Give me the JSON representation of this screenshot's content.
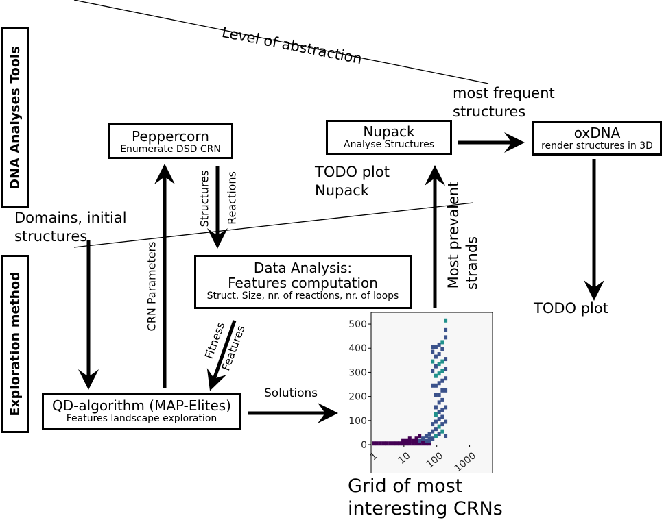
{
  "side_panels": {
    "tools": "DNA Analyses Tools",
    "method": "Exploration method"
  },
  "abstraction_label": "Level of abstraction",
  "boxes": {
    "peppercorn": {
      "title": "Peppercorn",
      "subtitle": "Enumerate DSD CRN"
    },
    "nupack": {
      "title": "Nupack",
      "subtitle": "Analyse Structures"
    },
    "oxdna": {
      "title": "oxDNA",
      "subtitle": "render structures in 3D"
    },
    "analysis": {
      "title1": "Data Analysis:",
      "title2": "Features computation",
      "subtitle": "Struct. Size, nr. of reactions, nr. of loops"
    },
    "qd": {
      "title": "QD-algorithm (MAP-Elites)",
      "subtitle": "Features landscape exploration"
    }
  },
  "labels": {
    "most_frequent_1": "most frequent",
    "most_frequent_2": "structures",
    "todo_nupack_1": "TODO plot",
    "todo_nupack_2": "Nupack",
    "domains_1": "Domains, initial",
    "domains_2": "structures",
    "structures": "Structures",
    "reactions": "Reactions",
    "crn_params": "CRN Parameters",
    "fitness": "Fitness",
    "features": "Features",
    "prevalent_1": "Most prevalent",
    "prevalent_2": "strands",
    "solutions": "Solutions",
    "todo_plot": "TODO plot",
    "grid_1": "Grid of most",
    "grid_2": "interesting CRNs"
  },
  "chart_data": {
    "type": "heatmap",
    "title": "",
    "xlabel": "",
    "ylabel": "",
    "x_scale": "log",
    "x_ticks": [
      "1",
      "10",
      "100",
      "1000"
    ],
    "y_ticks": [
      "0",
      "100",
      "200",
      "300",
      "400",
      "500"
    ],
    "ylim": [
      0,
      520
    ],
    "xlim": [
      1,
      5000
    ],
    "colormap": [
      "#440154",
      "#3b528b",
      "#21918c"
    ],
    "cells": [
      {
        "x": 1.2,
        "y": 5,
        "v": 0
      },
      {
        "x": 1.5,
        "y": 5,
        "v": 0
      },
      {
        "x": 1.9,
        "y": 5,
        "v": 0
      },
      {
        "x": 2.4,
        "y": 5,
        "v": 0
      },
      {
        "x": 3.0,
        "y": 5,
        "v": 0
      },
      {
        "x": 3.8,
        "y": 5,
        "v": 0
      },
      {
        "x": 4.8,
        "y": 5,
        "v": 0
      },
      {
        "x": 6.0,
        "y": 5,
        "v": 0
      },
      {
        "x": 7.5,
        "y": 5,
        "v": 0
      },
      {
        "x": 9.4,
        "y": 5,
        "v": 0
      },
      {
        "x": 12,
        "y": 5,
        "v": 0
      },
      {
        "x": 15,
        "y": 5,
        "v": 0
      },
      {
        "x": 19,
        "y": 5,
        "v": 0
      },
      {
        "x": 24,
        "y": 5,
        "v": 0
      },
      {
        "x": 30,
        "y": 5,
        "v": 0
      },
      {
        "x": 38,
        "y": 5,
        "v": 0
      },
      {
        "x": 48,
        "y": 5,
        "v": 0
      },
      {
        "x": 60,
        "y": 5,
        "v": 0
      },
      {
        "x": 9.4,
        "y": 15,
        "v": 0
      },
      {
        "x": 12,
        "y": 15,
        "v": 0
      },
      {
        "x": 15,
        "y": 15,
        "v": 0
      },
      {
        "x": 19,
        "y": 15,
        "v": 0
      },
      {
        "x": 24,
        "y": 15,
        "v": 0
      },
      {
        "x": 30,
        "y": 15,
        "v": 1
      },
      {
        "x": 38,
        "y": 15,
        "v": 0
      },
      {
        "x": 48,
        "y": 15,
        "v": 1
      },
      {
        "x": 60,
        "y": 15,
        "v": 1
      },
      {
        "x": 15,
        "y": 25,
        "v": 0
      },
      {
        "x": 24,
        "y": 25,
        "v": 0
      },
      {
        "x": 30,
        "y": 35,
        "v": 0
      },
      {
        "x": 38,
        "y": 25,
        "v": 1
      },
      {
        "x": 48,
        "y": 35,
        "v": 1
      },
      {
        "x": 60,
        "y": 45,
        "v": 1
      },
      {
        "x": 60,
        "y": 25,
        "v": 1
      },
      {
        "x": 75,
        "y": 25,
        "v": 1
      },
      {
        "x": 75,
        "y": 55,
        "v": 1
      },
      {
        "x": 75,
        "y": 85,
        "v": 1
      },
      {
        "x": 94,
        "y": 35,
        "v": 2
      },
      {
        "x": 94,
        "y": 65,
        "v": 1
      },
      {
        "x": 94,
        "y": 95,
        "v": 1
      },
      {
        "x": 94,
        "y": 125,
        "v": 2
      },
      {
        "x": 94,
        "y": 155,
        "v": 1
      },
      {
        "x": 118,
        "y": 45,
        "v": 1
      },
      {
        "x": 118,
        "y": 75,
        "v": 2
      },
      {
        "x": 118,
        "y": 105,
        "v": 1
      },
      {
        "x": 118,
        "y": 135,
        "v": 1
      },
      {
        "x": 118,
        "y": 175,
        "v": 1
      },
      {
        "x": 118,
        "y": 205,
        "v": 1
      },
      {
        "x": 148,
        "y": 55,
        "v": 2
      },
      {
        "x": 148,
        "y": 85,
        "v": 1
      },
      {
        "x": 148,
        "y": 115,
        "v": 1
      },
      {
        "x": 148,
        "y": 145,
        "v": 1
      },
      {
        "x": 148,
        "y": 185,
        "v": 1
      },
      {
        "x": 148,
        "y": 225,
        "v": 1
      },
      {
        "x": 94,
        "y": 205,
        "v": 1
      },
      {
        "x": 94,
        "y": 245,
        "v": 1
      },
      {
        "x": 94,
        "y": 285,
        "v": 2
      },
      {
        "x": 94,
        "y": 325,
        "v": 1
      },
      {
        "x": 94,
        "y": 365,
        "v": 1
      },
      {
        "x": 94,
        "y": 405,
        "v": 1
      },
      {
        "x": 75,
        "y": 245,
        "v": 1
      },
      {
        "x": 75,
        "y": 305,
        "v": 1
      },
      {
        "x": 75,
        "y": 345,
        "v": 2
      },
      {
        "x": 75,
        "y": 385,
        "v": 1
      },
      {
        "x": 75,
        "y": 405,
        "v": 1
      },
      {
        "x": 118,
        "y": 255,
        "v": 1
      },
      {
        "x": 118,
        "y": 295,
        "v": 2
      },
      {
        "x": 118,
        "y": 335,
        "v": 2
      },
      {
        "x": 118,
        "y": 375,
        "v": 1
      },
      {
        "x": 118,
        "y": 415,
        "v": 1
      },
      {
        "x": 148,
        "y": 265,
        "v": 1
      },
      {
        "x": 148,
        "y": 305,
        "v": 2
      },
      {
        "x": 148,
        "y": 345,
        "v": 2
      },
      {
        "x": 148,
        "y": 395,
        "v": 1
      },
      {
        "x": 148,
        "y": 425,
        "v": 2
      },
      {
        "x": 186,
        "y": 225,
        "v": 1
      },
      {
        "x": 186,
        "y": 275,
        "v": 1
      },
      {
        "x": 186,
        "y": 315,
        "v": 1
      },
      {
        "x": 186,
        "y": 355,
        "v": 1
      },
      {
        "x": 186,
        "y": 445,
        "v": 1
      },
      {
        "x": 186,
        "y": 475,
        "v": 1
      },
      {
        "x": 186,
        "y": 515,
        "v": 2
      },
      {
        "x": 186,
        "y": 155,
        "v": 1
      },
      {
        "x": 186,
        "y": 95,
        "v": 1
      },
      {
        "x": 186,
        "y": 35,
        "v": 1
      }
    ]
  }
}
